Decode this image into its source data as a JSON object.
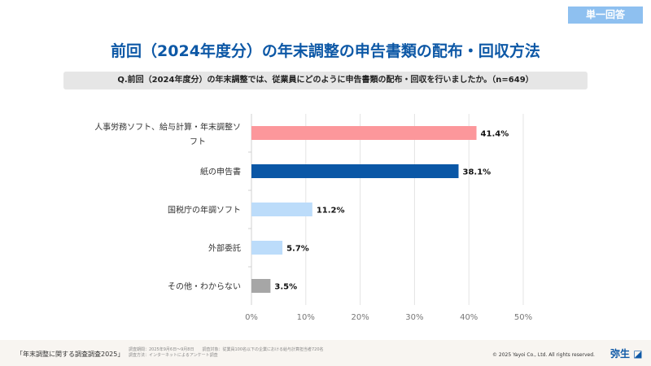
{
  "badge": "単一回答",
  "title": "前回（2024年度分）の年末調整の申告書類の配布・回収方法",
  "question": "Q.前回（2024年度分）の年末調整では、従業員にどのように申告書類の配布・回収を行いましたか。（n=649）",
  "chart_data": {
    "type": "bar",
    "orientation": "horizontal",
    "categories": [
      "人事労務ソフト、給与計算・年末調整ソフト",
      "紙の申告書",
      "国税庁の年調ソフト",
      "外部委託",
      "その他・わからない"
    ],
    "values": [
      41.4,
      38.1,
      11.2,
      5.7,
      3.5
    ],
    "data_labels": [
      "41.4%",
      "38.1%",
      "11.2%",
      "5.7%",
      "3.5%"
    ],
    "colors": [
      "#fc979b",
      "#0a57a6",
      "#bcdcfa",
      "#bcdcfa",
      "#a6a6a6"
    ],
    "xlim": [
      0,
      50
    ],
    "xticks": [
      "0%",
      "10%",
      "20%",
      "30%",
      "40%",
      "50%"
    ],
    "grid": true
  },
  "footer": {
    "survey_name": "「年末調整に関する調査調査2025」",
    "line1": "調査期間：2025年9月6日～9月8日　　調査対象：従業員100名以下の企業における給与計算担当者720名",
    "line2": "調査方法：インターネットによるアンケート調査",
    "copyright": "© 2025 Yayoi Co., Ltd.  All rights reserved.",
    "logo": "弥生"
  }
}
